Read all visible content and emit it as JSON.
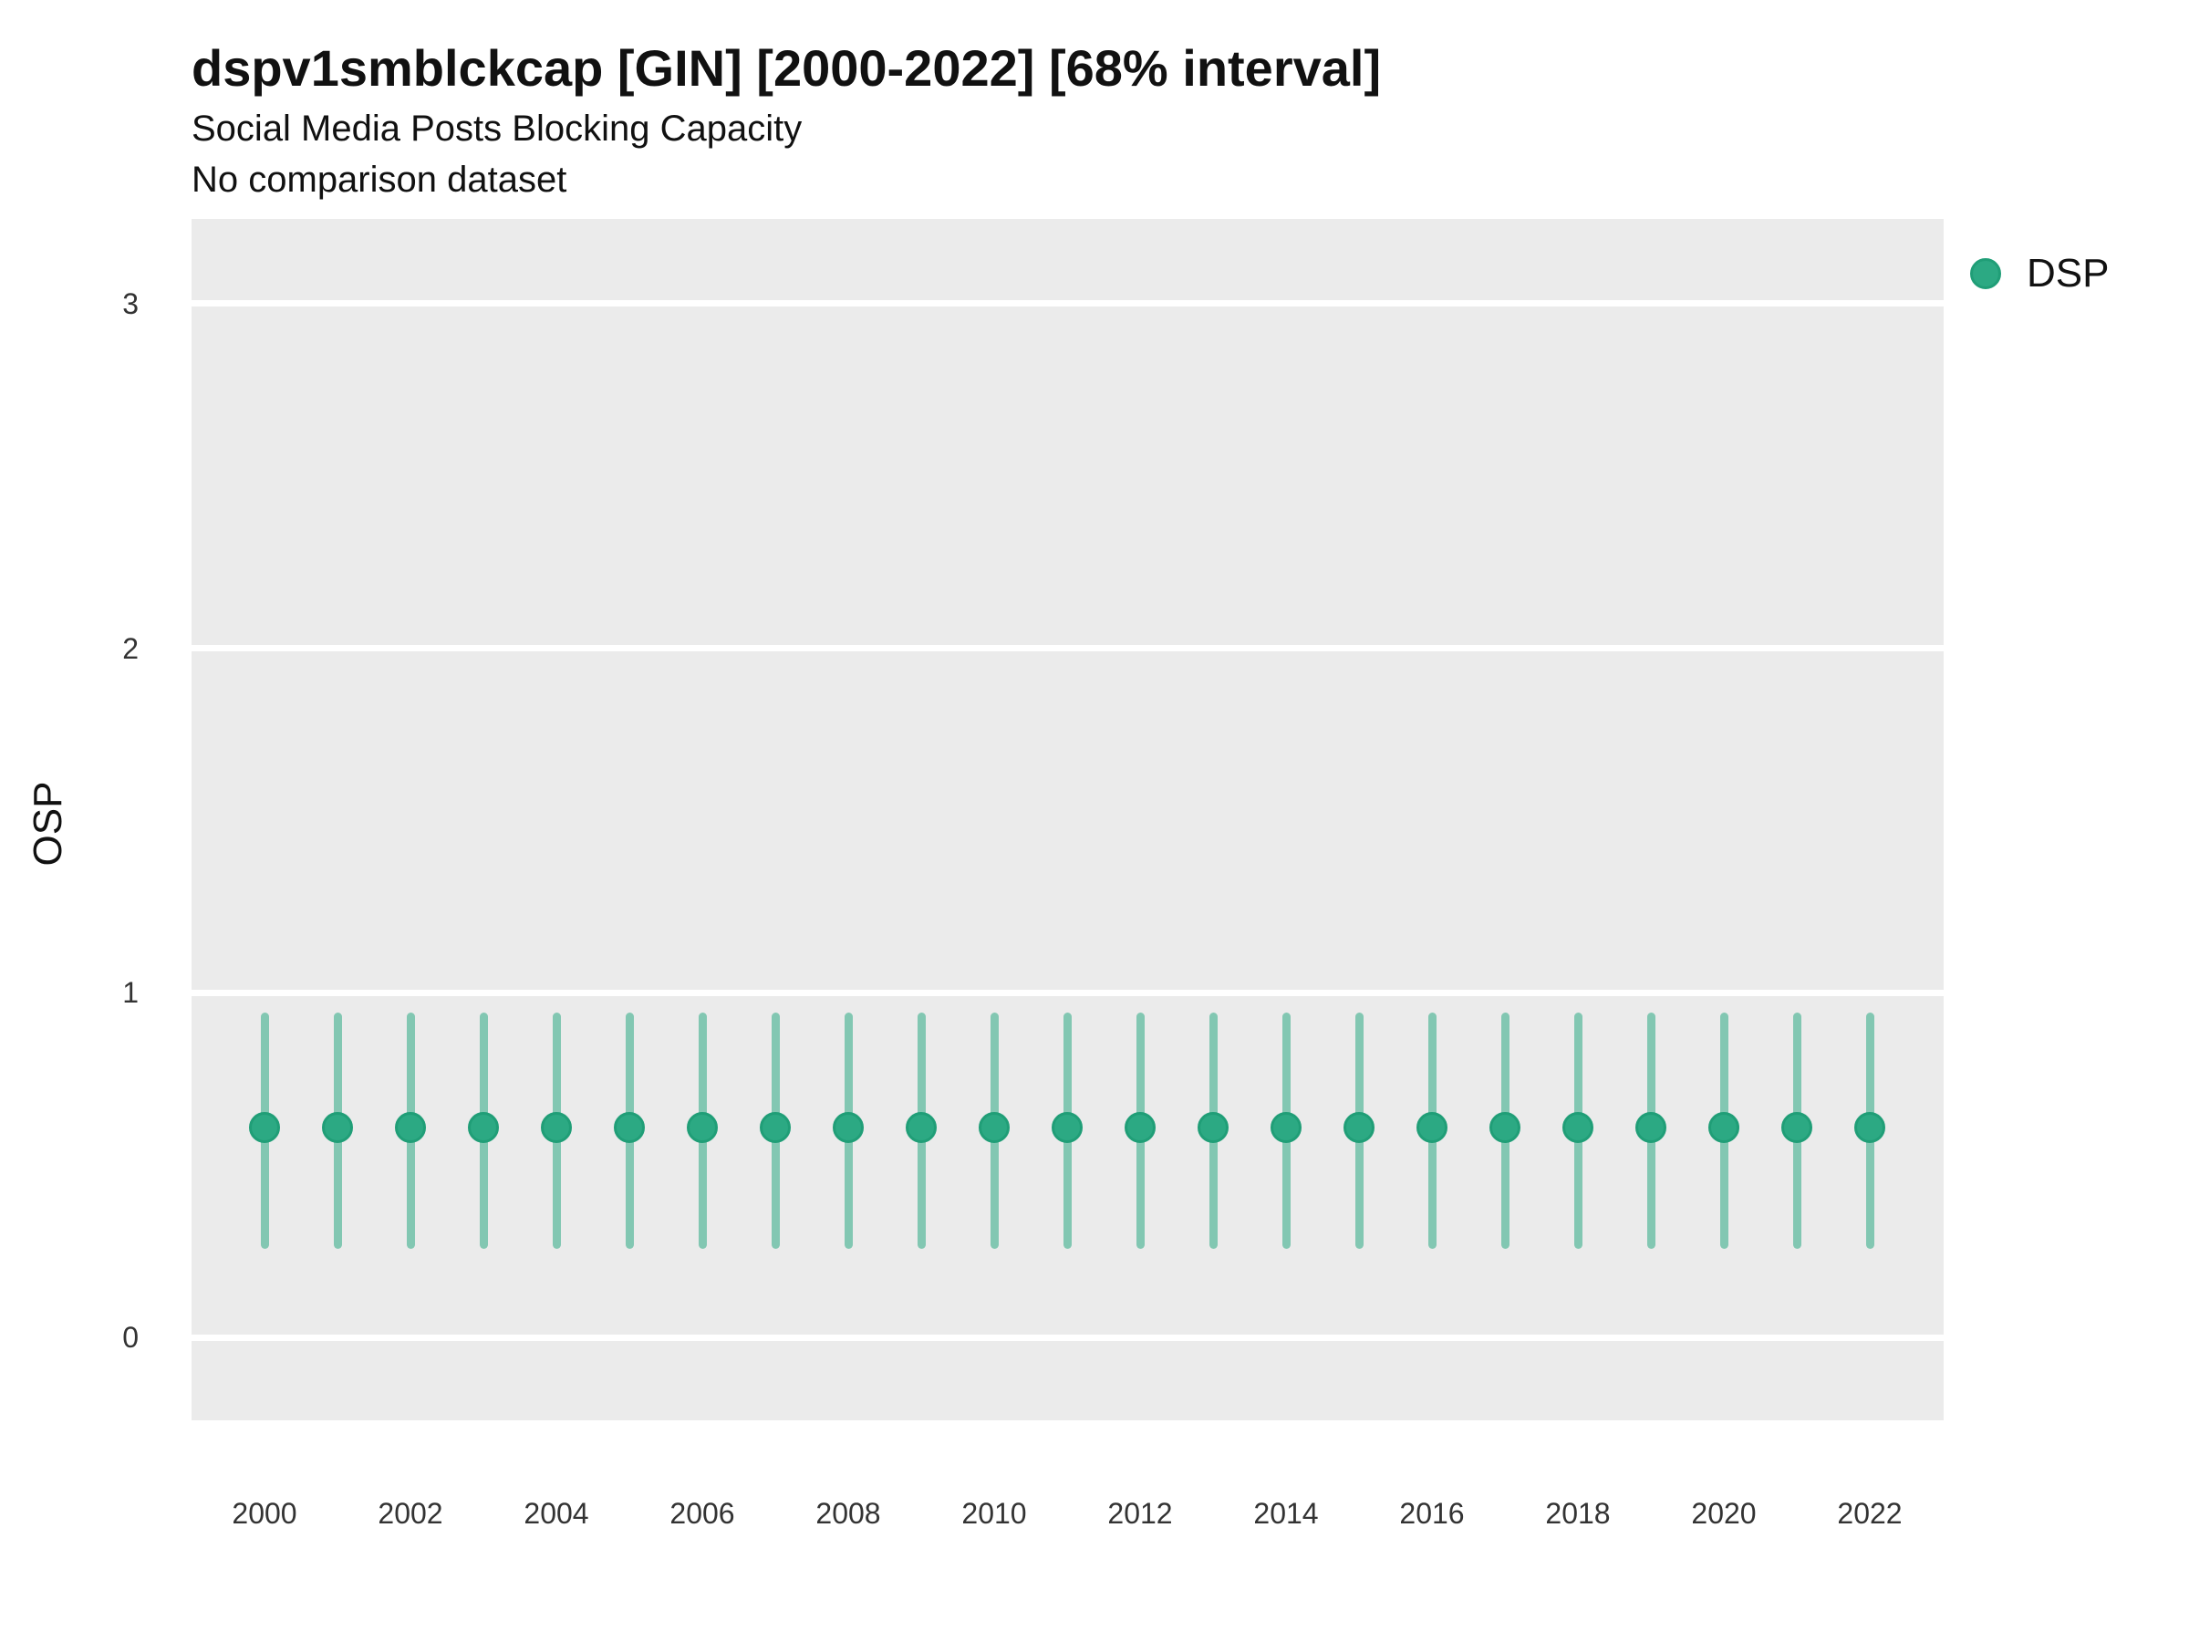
{
  "header": {
    "title": "dspv1smblckcap [GIN] [2000-2022] [68% interval]",
    "subtitle": "Social Media Posts Blocking Capacity",
    "note": "No comparison dataset"
  },
  "axes": {
    "y_title": "OSP",
    "y_tick_values": [
      3,
      2,
      1,
      0
    ],
    "y_tick_labels": [
      "3",
      "2",
      "1",
      "0"
    ],
    "x_tick_years": [
      2000,
      2002,
      2004,
      2006,
      2008,
      2010,
      2012,
      2014,
      2016,
      2018,
      2020,
      2022
    ],
    "x_tick_labels": [
      "2000",
      "2002",
      "2004",
      "2006",
      "2008",
      "2010",
      "2012",
      "2014",
      "2016",
      "2018",
      "2020",
      "2022"
    ]
  },
  "legend": {
    "items": [
      {
        "label": "DSP",
        "marker": "circle",
        "color": "#2CA983"
      }
    ]
  },
  "colors": {
    "panel_background": "#EBEBEB",
    "gridline": "#FFFFFF",
    "point_fill": "#2CA983",
    "point_stroke": "#209E77",
    "interval_bar": "rgba(43,169,132,0.55)"
  },
  "chart_data": {
    "type": "scatter",
    "title": "dspv1smblckcap [GIN] [2000-2022] [68% interval]",
    "subtitle": "Social Media Posts Blocking Capacity",
    "note": "No comparison dataset",
    "xlabel": "",
    "ylabel": "OSP",
    "ylim": [
      -0.24,
      3.25
    ],
    "y_ticks": [
      0,
      1,
      2,
      3
    ],
    "x_range": [
      2000,
      2022
    ],
    "grid": "horizontal-major-only-white-on-gray",
    "legend_position": "right-top",
    "interval": "68%",
    "series": [
      {
        "name": "DSP",
        "marker": "point-with-vertical-interval",
        "x": [
          2000,
          2001,
          2002,
          2003,
          2004,
          2005,
          2006,
          2007,
          2008,
          2009,
          2010,
          2011,
          2012,
          2013,
          2014,
          2015,
          2016,
          2017,
          2018,
          2019,
          2020,
          2021,
          2022
        ],
        "y": [
          0.61,
          0.61,
          0.61,
          0.61,
          0.61,
          0.61,
          0.61,
          0.61,
          0.61,
          0.61,
          0.61,
          0.61,
          0.61,
          0.61,
          0.61,
          0.61,
          0.61,
          0.61,
          0.61,
          0.61,
          0.61,
          0.61,
          0.61
        ],
        "y_low": [
          0.27,
          0.27,
          0.27,
          0.27,
          0.27,
          0.27,
          0.27,
          0.27,
          0.27,
          0.27,
          0.27,
          0.27,
          0.27,
          0.27,
          0.27,
          0.27,
          0.27,
          0.27,
          0.27,
          0.27,
          0.27,
          0.27,
          0.27
        ],
        "y_high": [
          0.93,
          0.93,
          0.93,
          0.93,
          0.93,
          0.93,
          0.93,
          0.93,
          0.93,
          0.93,
          0.93,
          0.93,
          0.93,
          0.93,
          0.93,
          0.93,
          0.93,
          0.93,
          0.93,
          0.93,
          0.93,
          0.93,
          0.93
        ]
      }
    ]
  }
}
